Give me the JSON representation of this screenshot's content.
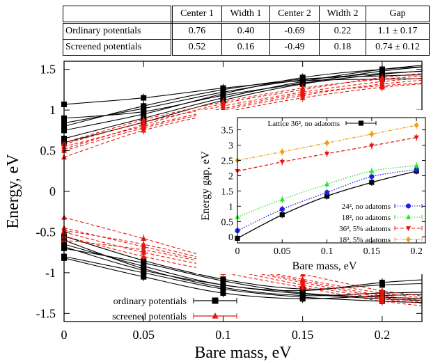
{
  "table": {
    "headers": [
      "Center 1",
      "Width 1",
      "Center 2",
      "Width 2",
      "Gap"
    ],
    "rows": [
      {
        "label": "Ordinary potentials",
        "cells": [
          "0.76",
          "0.40",
          "-0.69",
          "0.22",
          "1.1 ± 0.17"
        ]
      },
      {
        "label": "Screened potentials",
        "cells": [
          "0.52",
          "0.16",
          "-0.49",
          "0.18",
          "0.74 ± 0.12"
        ]
      }
    ]
  },
  "chart_data": [
    {
      "type": "scatter",
      "xlabel": "Bare mass, eV",
      "ylabel": "Energy, eV",
      "xlim": [
        0,
        0.225
      ],
      "ylim": [
        -1.6,
        1.6
      ],
      "xticks": [
        "0",
        "0.05",
        "0.1",
        "0.15",
        "0.2"
      ],
      "yticks": [
        "-1.5",
        "-1",
        "-0.5",
        "0",
        "0.5",
        "1",
        "1.5"
      ],
      "legend_position": "bottom-left",
      "series": [
        {
          "name": "ordinary potentials",
          "color": "#000000",
          "marker": "square",
          "line": "solid",
          "x": [
            0,
            0.05,
            0.1,
            0.15,
            0.2
          ],
          "upper_band": [
            [
              0.84,
              1.02,
              1.22,
              1.37,
              1.45
            ],
            [
              0.75,
              0.95,
              1.2,
              1.4,
              1.5
            ],
            [
              0.8,
              1.05,
              1.25,
              1.38,
              1.42
            ],
            [
              0.65,
              0.9,
              1.15,
              1.35,
              1.5
            ],
            [
              1.07,
              1.15,
              1.27,
              1.36,
              1.38
            ],
            [
              0.9,
              0.98,
              1.18,
              1.33,
              1.48
            ],
            [
              0.6,
              0.85,
              1.12,
              1.32,
              1.44
            ]
          ],
          "lower_band": [
            [
              -0.6,
              -0.95,
              -1.18,
              -1.28,
              -1.25
            ],
            [
              -0.7,
              -0.88,
              -1.1,
              -1.25,
              -1.3
            ],
            [
              -0.8,
              -1.0,
              -1.2,
              -1.3,
              -1.35
            ],
            [
              -0.65,
              -0.92,
              -1.15,
              -1.22,
              -1.12
            ],
            [
              -0.82,
              -1.05,
              -1.25,
              -1.32,
              -1.28
            ],
            [
              -0.55,
              -0.85,
              -1.08,
              -1.2,
              -1.15
            ],
            [
              -0.68,
              -0.97,
              -1.15,
              -1.26,
              -1.32
            ]
          ]
        },
        {
          "name": "screened potentials",
          "color": "#e8160c",
          "marker": "triangle",
          "line": "dashed",
          "x": [
            0,
            0.05,
            0.1,
            0.15,
            0.2
          ],
          "upper_band": [
            [
              0.55,
              0.8,
              1.02,
              1.2,
              1.3
            ],
            [
              0.5,
              0.78,
              1.0,
              1.18,
              1.32
            ],
            [
              0.58,
              0.85,
              1.05,
              1.22,
              1.35
            ],
            [
              0.42,
              0.75,
              0.97,
              1.15,
              1.28
            ],
            [
              0.52,
              0.82,
              1.08,
              1.25,
              1.4
            ],
            [
              0.6,
              0.88,
              1.1,
              1.27,
              1.38
            ]
          ],
          "lower_band": [
            [
              -0.32,
              -0.58,
              -0.85,
              -1.02,
              -1.22
            ],
            [
              -0.45,
              -0.68,
              -0.9,
              -1.1,
              -1.28
            ],
            [
              -0.5,
              -0.75,
              -0.95,
              -1.15,
              -1.32
            ],
            [
              -0.55,
              -0.8,
              -1.0,
              -1.18,
              -1.35
            ],
            [
              -0.6,
              -0.72,
              -0.92,
              -1.12,
              -1.3
            ],
            [
              -0.48,
              -0.65,
              -0.88,
              -1.08,
              -1.25
            ]
          ]
        }
      ]
    },
    {
      "type": "line",
      "xlabel": "Bare mass, eV",
      "ylabel": "Energy gap, eV",
      "xlim": [
        0,
        0.21
      ],
      "ylim": [
        -0.2,
        3.9
      ],
      "xticks": [
        "0",
        "0.05",
        "0.1",
        "0.15",
        "0.2"
      ],
      "yticks": [
        "0",
        "0.5",
        "1",
        "1.5",
        "2",
        "2.5",
        "3",
        "3.5"
      ],
      "series": [
        {
          "name": "Lattice 36², no adatoms",
          "color": "#000000",
          "marker": "square",
          "line": "solid",
          "x": [
            0,
            0.05,
            0.1,
            0.15,
            0.2
          ],
          "y": [
            -0.05,
            0.72,
            1.33,
            1.78,
            2.15
          ]
        },
        {
          "name": "24², no adatoms",
          "color": "#1f1fe0",
          "marker": "circle",
          "line": "dotted",
          "x": [
            0,
            0.05,
            0.1,
            0.15,
            0.2
          ],
          "y": [
            0.2,
            0.9,
            1.45,
            1.97,
            2.2
          ]
        },
        {
          "name": "18², no adatoms",
          "color": "#2ee02e",
          "marker": "triangle-up",
          "line": "dotted",
          "x": [
            0,
            0.05,
            0.1,
            0.15,
            0.2
          ],
          "y": [
            0.65,
            1.22,
            1.72,
            2.15,
            2.33
          ]
        },
        {
          "name": "36², 5% adatoms",
          "color": "#e8160c",
          "marker": "triangle-down",
          "line": "dashed",
          "x": [
            0,
            0.05,
            0.1,
            0.15,
            0.2
          ],
          "y": [
            2.15,
            2.45,
            2.72,
            2.98,
            3.25
          ]
        },
        {
          "name": "18², 5% adatoms",
          "color": "#f0a010",
          "marker": "diamond",
          "line": "dash-dot",
          "x": [
            0,
            0.05,
            0.1,
            0.15,
            0.2
          ],
          "y": [
            2.5,
            2.78,
            3.07,
            3.36,
            3.65
          ]
        }
      ]
    }
  ]
}
